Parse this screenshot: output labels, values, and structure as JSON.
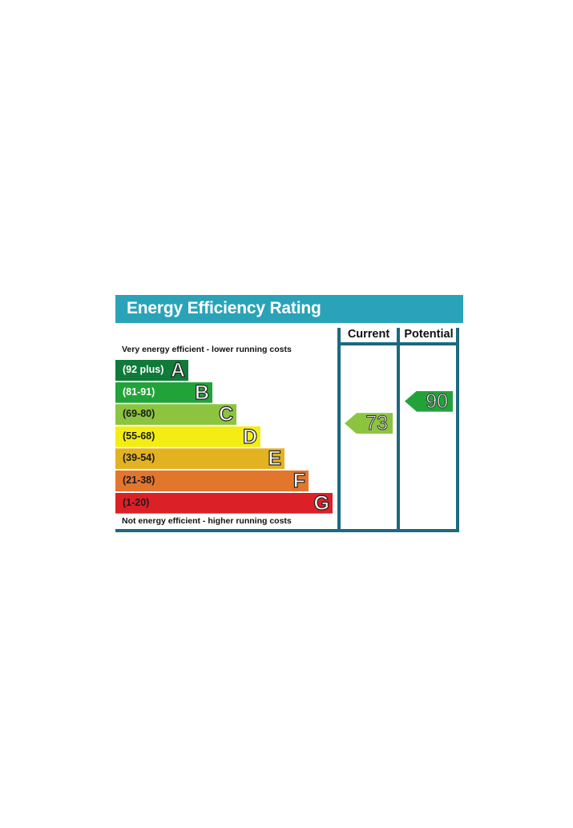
{
  "chart_data": {
    "type": "bar",
    "title": "Energy Efficiency Rating",
    "columns": [
      "Current",
      "Potential"
    ],
    "top_note": "Very energy efficient - lower running costs",
    "bottom_note": "Not energy efficient - higher running costs",
    "bands": [
      {
        "letter": "A",
        "range": "(92 plus)",
        "color": "#0f7a3a",
        "light_text": true
      },
      {
        "letter": "B",
        "range": "(81-91)",
        "color": "#22a33a",
        "light_text": true
      },
      {
        "letter": "C",
        "range": "(69-80)",
        "color": "#8cc43f",
        "light_text": false
      },
      {
        "letter": "D",
        "range": "(55-68)",
        "color": "#f3ed14",
        "light_text": false
      },
      {
        "letter": "E",
        "range": "(39-54)",
        "color": "#e3b221",
        "light_text": false
      },
      {
        "letter": "F",
        "range": "(21-38)",
        "color": "#e3762d",
        "light_text": false
      },
      {
        "letter": "G",
        "range": "(1-20)",
        "color": "#dc2027",
        "light_text": false
      }
    ],
    "current": {
      "value": 73,
      "band": "C",
      "color": "#8cc43f"
    },
    "potential": {
      "value": 90,
      "band": "B",
      "color": "#22a33a"
    },
    "colors": {
      "header": "#2aa3b8",
      "frame": "#1b6a80"
    }
  }
}
